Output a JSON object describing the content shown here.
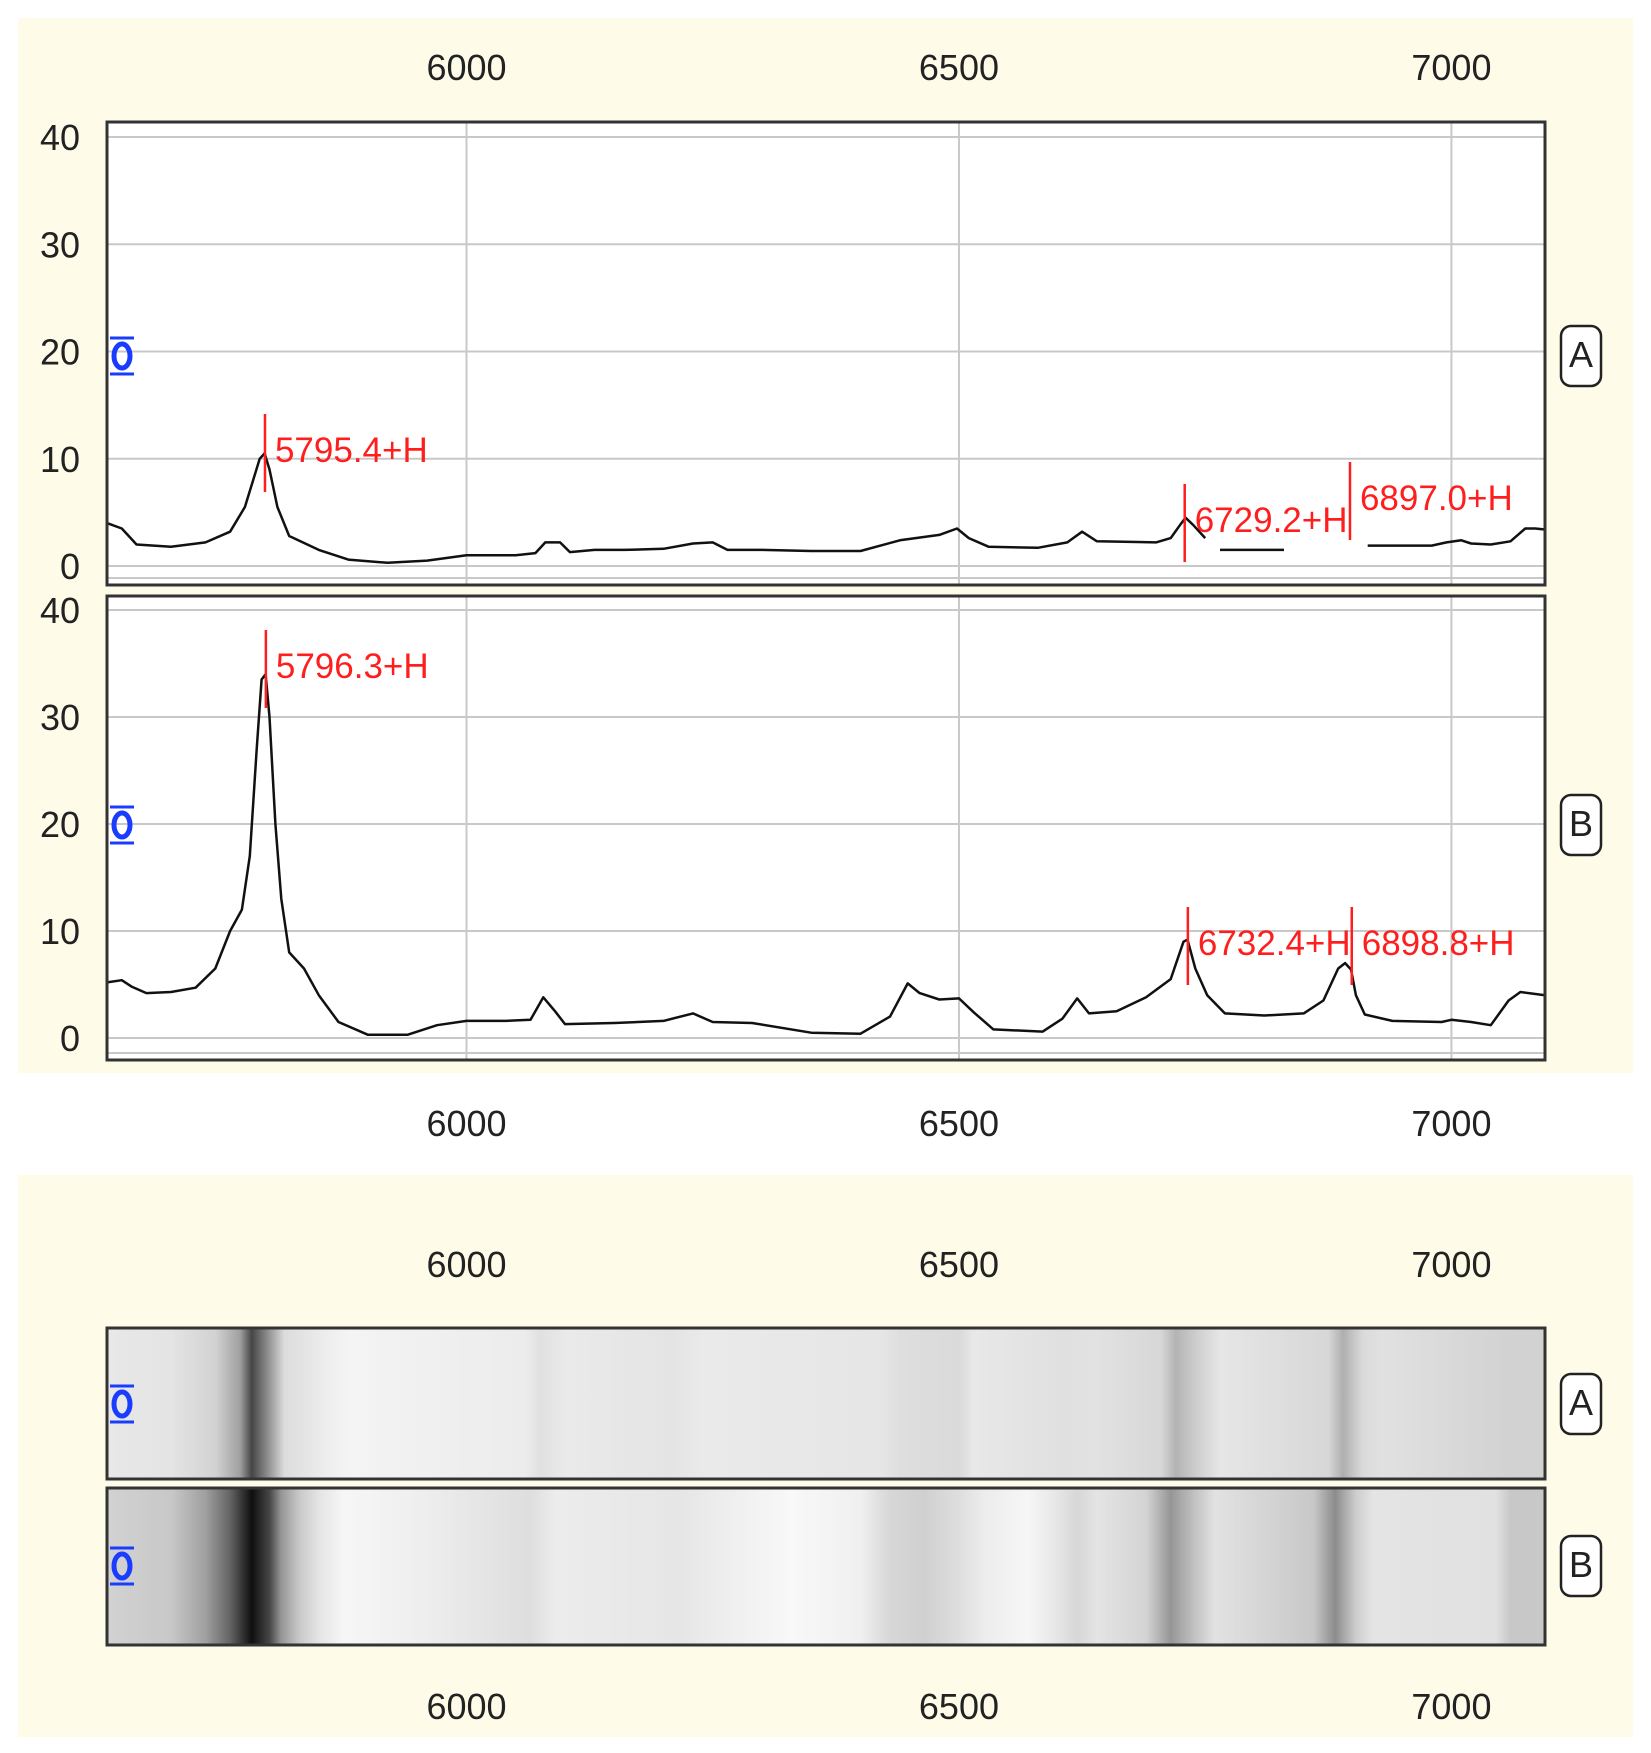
{
  "chart_data": [
    {
      "type": "line",
      "title": "",
      "xlabel": "",
      "ylabel": "",
      "xlim": [
        5635,
        7095
      ],
      "ylim": [
        -2,
        41
      ],
      "x_ticks": [
        6000,
        6500,
        7000
      ],
      "y_ticks": [
        0,
        10,
        20,
        30,
        40
      ],
      "x_tick_labels": [
        "6000",
        "6500",
        "7000"
      ],
      "y_tick_labels": [
        "0",
        "10",
        "20",
        "30",
        "40"
      ],
      "grid": true,
      "panels": [
        {
          "label": "A",
          "series": [
            {
              "points": [
                [
                  5635,
                  4
                ],
                [
                  5650,
                  3.5
                ],
                [
                  5665,
                  2
                ],
                [
                  5700,
                  1.8
                ],
                [
                  5735,
                  2.2
                ],
                [
                  5760,
                  3.2
                ],
                [
                  5775,
                  5.5
                ],
                [
                  5790,
                  10
                ],
                [
                  5795,
                  10.5
                ],
                [
                  5800,
                  9
                ],
                [
                  5808,
                  5.5
                ],
                [
                  5820,
                  2.8
                ],
                [
                  5850,
                  1.5
                ],
                [
                  5880,
                  0.6
                ],
                [
                  5920,
                  0.3
                ],
                [
                  5960,
                  0.5
                ],
                [
                  6000,
                  1
                ],
                [
                  6050,
                  1
                ],
                [
                  6070,
                  1.2
                ],
                [
                  6080,
                  2.2
                ],
                [
                  6095,
                  2.2
                ],
                [
                  6105,
                  1.3
                ],
                [
                  6130,
                  1.5
                ],
                [
                  6160,
                  1.5
                ],
                [
                  6200,
                  1.6
                ],
                [
                  6230,
                  2.1
                ],
                [
                  6250,
                  2.2
                ],
                [
                  6265,
                  1.5
                ],
                [
                  6300,
                  1.5
                ],
                [
                  6350,
                  1.4
                ],
                [
                  6400,
                  1.4
                ],
                [
                  6440,
                  2.4
                ],
                [
                  6480,
                  2.9
                ],
                [
                  6498,
                  3.5
                ],
                [
                  6510,
                  2.6
                ],
                [
                  6530,
                  1.8
                ],
                [
                  6580,
                  1.7
                ],
                [
                  6610,
                  2.2
                ],
                [
                  6625,
                  3.2
                ],
                [
                  6640,
                  2.3
                ],
                [
                  6700,
                  2.2
                ],
                [
                  6715,
                  2.6
                ],
                [
                  6725,
                  3.9
                ],
                [
                  6730,
                  4.5
                ],
                [
                  6738,
                  3.8
                ],
                [
                  6750,
                  2.6
                ]
              ]
            },
            {
              "points": [
                [
                  6765,
                  1.5
                ],
                [
                  6830,
                  1.5
                ]
              ]
            },
            {
              "points": [
                [
                  6915,
                  1.9
                ],
                [
                  6980,
                  1.9
                ],
                [
                  6995,
                  2.2
                ],
                [
                  7010,
                  2.4
                ],
                [
                  7020,
                  2.1
                ],
                [
                  7040,
                  2
                ],
                [
                  7060,
                  2.3
                ],
                [
                  7075,
                  3.5
                ],
                [
                  7085,
                  3.5
                ],
                [
                  7095,
                  3.4
                ]
              ]
            }
          ],
          "peaks": [
            {
              "x": 5795.4,
              "label": "5795.4+H"
            },
            {
              "x": 6729.2,
              "label": "6729.2+H"
            },
            {
              "x": 6897.0,
              "label": "6897.0+H"
            }
          ]
        },
        {
          "label": "B",
          "series": [
            {
              "points": [
                [
                  5635,
                  5.2
                ],
                [
                  5650,
                  5.4
                ],
                [
                  5660,
                  4.8
                ],
                [
                  5675,
                  4.2
                ],
                [
                  5700,
                  4.3
                ],
                [
                  5725,
                  4.7
                ],
                [
                  5745,
                  6.5
                ],
                [
                  5760,
                  10
                ],
                [
                  5772,
                  12
                ],
                [
                  5780,
                  17
                ],
                [
                  5787,
                  27
                ],
                [
                  5792,
                  33.5
                ],
                [
                  5796,
                  34
                ],
                [
                  5800,
                  30
                ],
                [
                  5806,
                  20
                ],
                [
                  5812,
                  13
                ],
                [
                  5820,
                  8
                ],
                [
                  5835,
                  6.5
                ],
                [
                  5850,
                  4
                ],
                [
                  5870,
                  1.5
                ],
                [
                  5900,
                  0.3
                ],
                [
                  5940,
                  0.3
                ],
                [
                  5970,
                  1.2
                ],
                [
                  6000,
                  1.6
                ],
                [
                  6040,
                  1.6
                ],
                [
                  6065,
                  1.7
                ],
                [
                  6078,
                  3.8
                ],
                [
                  6090,
                  2.5
                ],
                [
                  6100,
                  1.3
                ],
                [
                  6150,
                  1.4
                ],
                [
                  6200,
                  1.6
                ],
                [
                  6230,
                  2.3
                ],
                [
                  6250,
                  1.5
                ],
                [
                  6290,
                  1.4
                ],
                [
                  6350,
                  0.5
                ],
                [
                  6400,
                  0.4
                ],
                [
                  6430,
                  2
                ],
                [
                  6448,
                  5.1
                ],
                [
                  6460,
                  4.2
                ],
                [
                  6480,
                  3.6
                ],
                [
                  6500,
                  3.7
                ],
                [
                  6515,
                  2.4
                ],
                [
                  6535,
                  0.8
                ],
                [
                  6585,
                  0.6
                ],
                [
                  6605,
                  1.8
                ],
                [
                  6620,
                  3.7
                ],
                [
                  6632,
                  2.3
                ],
                [
                  6660,
                  2.5
                ],
                [
                  6690,
                  3.8
                ],
                [
                  6715,
                  5.5
                ],
                [
                  6728,
                  9
                ],
                [
                  6732,
                  9.2
                ],
                [
                  6740,
                  6.5
                ],
                [
                  6752,
                  4
                ],
                [
                  6770,
                  2.3
                ],
                [
                  6810,
                  2.1
                ],
                [
                  6850,
                  2.3
                ],
                [
                  6870,
                  3.5
                ],
                [
                  6885,
                  6.5
                ],
                [
                  6892,
                  7
                ],
                [
                  6898,
                  6.4
                ],
                [
                  6903,
                  4
                ],
                [
                  6912,
                  2.2
                ],
                [
                  6940,
                  1.6
                ],
                [
                  6990,
                  1.5
                ],
                [
                  7000,
                  1.7
                ],
                [
                  7020,
                  1.5
                ],
                [
                  7040,
                  1.2
                ],
                [
                  7058,
                  3.5
                ],
                [
                  7070,
                  4.3
                ],
                [
                  7095,
                  4
                ]
              ]
            }
          ],
          "peaks": [
            {
              "x": 5796.3,
              "label": "5796.3+H"
            },
            {
              "x": 6732.4,
              "label": "6732.4+H"
            },
            {
              "x": 6898.8,
              "label": "6898.8+H"
            }
          ]
        }
      ]
    },
    {
      "type": "heatmap",
      "title": "",
      "xlim": [
        5635,
        7095
      ],
      "x_ticks": [
        6000,
        6500,
        7000
      ],
      "x_tick_labels": [
        "6000",
        "6500",
        "7000"
      ],
      "rows": [
        {
          "label": "A",
          "bands": [
            {
              "x": 5635,
              "gray": 232
            },
            {
              "x": 5700,
              "gray": 228
            },
            {
              "x": 5745,
              "gray": 210
            },
            {
              "x": 5770,
              "gray": 160
            },
            {
              "x": 5782,
              "gray": 70
            },
            {
              "x": 5800,
              "gray": 150
            },
            {
              "x": 5815,
              "gray": 220
            },
            {
              "x": 5860,
              "gray": 238
            },
            {
              "x": 5880,
              "gray": 244
            },
            {
              "x": 5960,
              "gray": 240
            },
            {
              "x": 6060,
              "gray": 236
            },
            {
              "x": 6075,
              "gray": 224
            },
            {
              "x": 6100,
              "gray": 234
            },
            {
              "x": 6210,
              "gray": 228
            },
            {
              "x": 6240,
              "gray": 234
            },
            {
              "x": 6420,
              "gray": 230
            },
            {
              "x": 6440,
              "gray": 222
            },
            {
              "x": 6500,
              "gray": 218
            },
            {
              "x": 6515,
              "gray": 232
            },
            {
              "x": 6605,
              "gray": 224
            },
            {
              "x": 6640,
              "gray": 226
            },
            {
              "x": 6705,
              "gray": 215
            },
            {
              "x": 6720,
              "gray": 180
            },
            {
              "x": 6745,
              "gray": 210
            },
            {
              "x": 6765,
              "gray": 230
            },
            {
              "x": 6875,
              "gray": 215
            },
            {
              "x": 6890,
              "gray": 175
            },
            {
              "x": 6910,
              "gray": 218
            },
            {
              "x": 6930,
              "gray": 225
            },
            {
              "x": 7060,
              "gray": 210
            }
          ]
        },
        {
          "label": "B",
          "bands": [
            {
              "x": 5635,
              "gray": 210
            },
            {
              "x": 5700,
              "gray": 200
            },
            {
              "x": 5735,
              "gray": 160
            },
            {
              "x": 5760,
              "gray": 100
            },
            {
              "x": 5782,
              "gray": 15
            },
            {
              "x": 5800,
              "gray": 70
            },
            {
              "x": 5812,
              "gray": 150
            },
            {
              "x": 5830,
              "gray": 200
            },
            {
              "x": 5850,
              "gray": 228
            },
            {
              "x": 5875,
              "gray": 246
            },
            {
              "x": 5940,
              "gray": 240
            },
            {
              "x": 6065,
              "gray": 222
            },
            {
              "x": 6090,
              "gray": 236
            },
            {
              "x": 6220,
              "gray": 230
            },
            {
              "x": 6250,
              "gray": 236
            },
            {
              "x": 6330,
              "gray": 248
            },
            {
              "x": 6400,
              "gray": 240
            },
            {
              "x": 6430,
              "gray": 215
            },
            {
              "x": 6465,
              "gray": 208
            },
            {
              "x": 6500,
              "gray": 222
            },
            {
              "x": 6525,
              "gray": 236
            },
            {
              "x": 6570,
              "gray": 246
            },
            {
              "x": 6600,
              "gray": 230
            },
            {
              "x": 6620,
              "gray": 215
            },
            {
              "x": 6640,
              "gray": 228
            },
            {
              "x": 6690,
              "gray": 212
            },
            {
              "x": 6715,
              "gray": 150
            },
            {
              "x": 6740,
              "gray": 195
            },
            {
              "x": 6760,
              "gray": 226
            },
            {
              "x": 6860,
              "gray": 200
            },
            {
              "x": 6882,
              "gray": 140
            },
            {
              "x": 6903,
              "gray": 205
            },
            {
              "x": 6920,
              "gray": 228
            },
            {
              "x": 7045,
              "gray": 225
            },
            {
              "x": 7060,
              "gray": 200
            }
          ]
        }
      ]
    }
  ],
  "colors": {
    "panel_bg": "#fefce8",
    "plot_bg": "#ffffff",
    "grid": "#c8c8c8",
    "trace": "#111111",
    "peak": "#ff1e1e",
    "tick_text": "#222222",
    "marker": "#1a3cff"
  },
  "icons": {
    "offset_marker": "blue-circle-bracket-icon",
    "panel_label": "rounded-letter-box"
  }
}
